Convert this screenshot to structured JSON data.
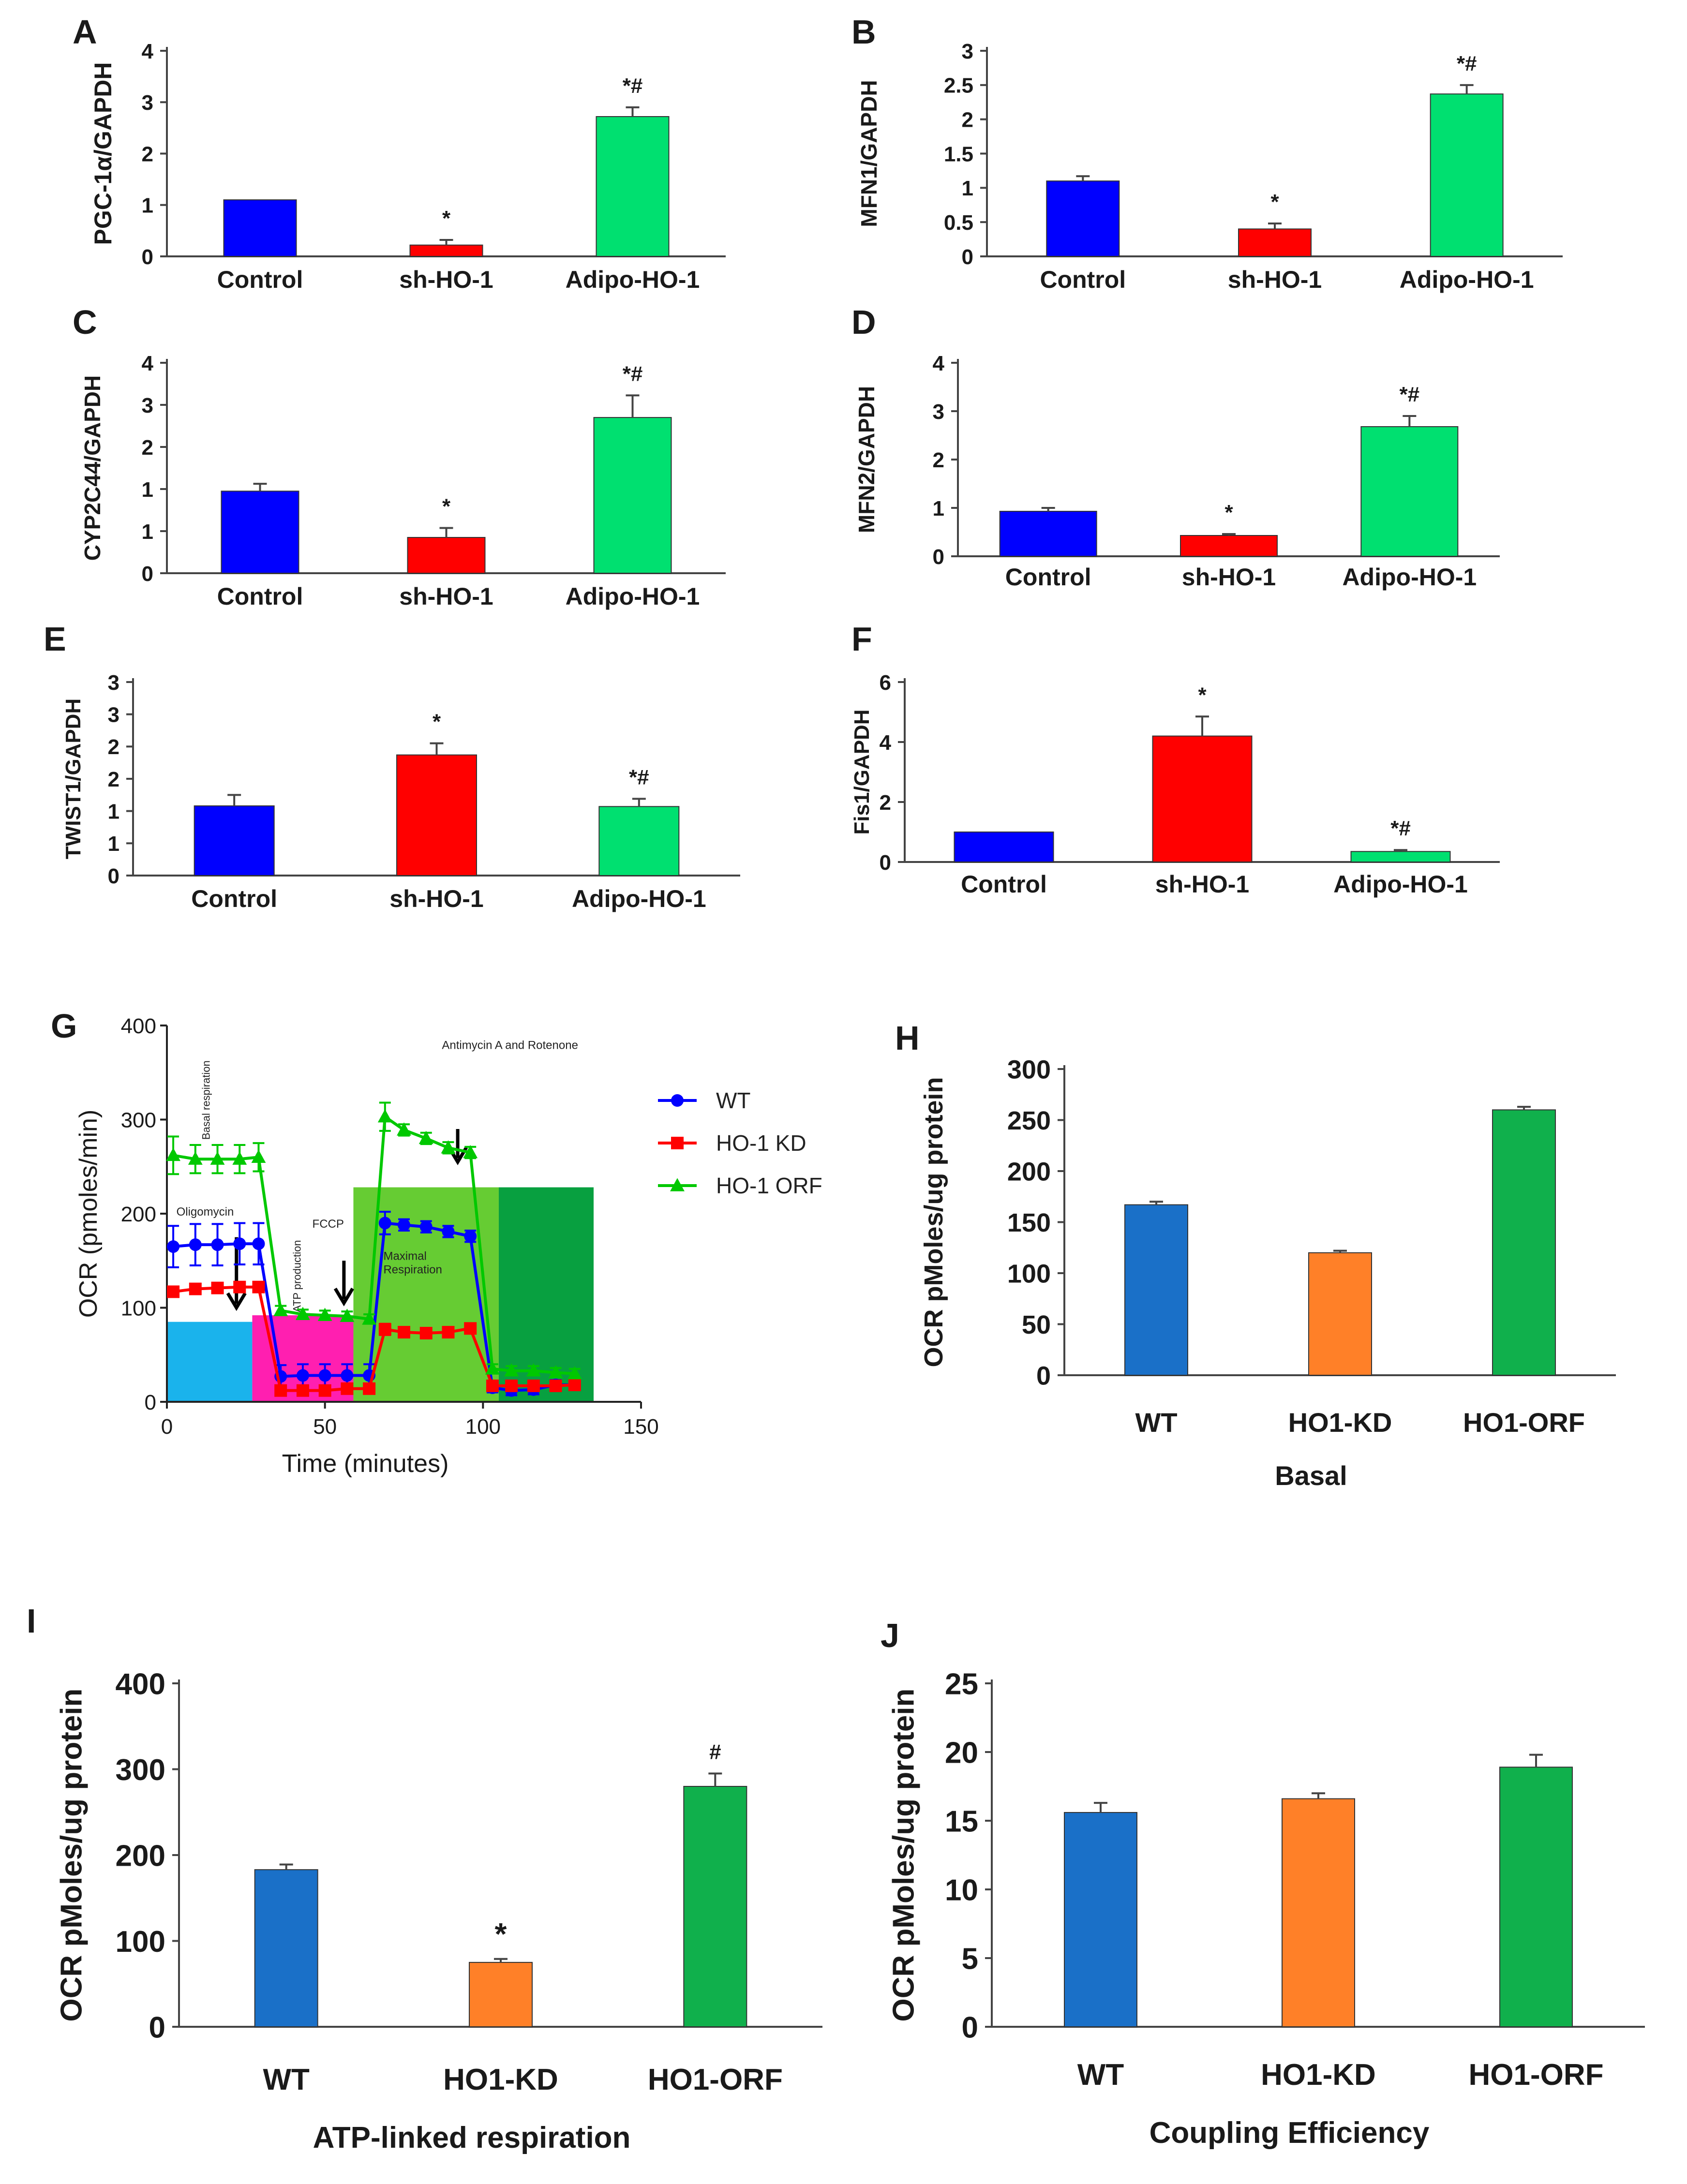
{
  "chart_data": [
    {
      "panel": "A",
      "type": "bar",
      "categories": [
        "Control",
        "sh-HO-1",
        "Adipo-HO-1"
      ],
      "values": [
        1.1,
        0.22,
        2.72
      ],
      "errors": [
        0,
        0.1,
        0.18
      ],
      "colors": [
        "#0000ff",
        "#ff0000",
        "#00e070"
      ],
      "annotations": [
        "",
        "*",
        "*#"
      ],
      "ylabel": "PGC-1α/GAPDH",
      "ylim": [
        0,
        4
      ],
      "yticks": [
        "0",
        "1",
        "2",
        "3",
        "4"
      ]
    },
    {
      "panel": "B",
      "type": "bar",
      "categories": [
        "Control",
        "sh-HO-1",
        "Adipo-HO-1"
      ],
      "values": [
        1.1,
        0.4,
        2.37
      ],
      "errors": [
        0.07,
        0.08,
        0.13
      ],
      "colors": [
        "#0000ff",
        "#ff0000",
        "#00e070"
      ],
      "annotations": [
        "",
        "*",
        "*#"
      ],
      "ylabel": "MFN1/GAPDH",
      "ylim": [
        0,
        3
      ],
      "yticks": [
        "0",
        "0.5",
        "1",
        "1.5",
        "2",
        "2.5",
        "3"
      ]
    },
    {
      "panel": "C",
      "type": "bar",
      "categories": [
        "Control",
        "sh-HO-1",
        "Adipo-HO-1"
      ],
      "values": [
        1.56,
        0.68,
        2.96
      ],
      "errors": [
        0.14,
        0.18,
        0.42
      ],
      "colors": [
        "#0000ff",
        "#ff0000",
        "#00e070"
      ],
      "annotations": [
        "",
        "*",
        "*#"
      ],
      "ylabel": "CYP2C44/GAPDH",
      "ylim": [
        0,
        4
      ],
      "yticks": [
        "0",
        "1",
        "1",
        "2",
        "3",
        "4"
      ]
    },
    {
      "panel": "D",
      "type": "bar",
      "categories": [
        "Control",
        "sh-HO-1",
        "Adipo-HO-1"
      ],
      "values": [
        0.93,
        0.43,
        2.68
      ],
      "errors": [
        0.07,
        0.03,
        0.22
      ],
      "colors": [
        "#0000ff",
        "#ff0000",
        "#00e070"
      ],
      "annotations": [
        "",
        "*",
        "*#"
      ],
      "ylabel": "MFN2/GAPDH",
      "ylim": [
        0,
        4
      ],
      "yticks": [
        "0",
        "1",
        "2",
        "3",
        "4"
      ]
    },
    {
      "panel": "E",
      "type": "bar",
      "categories": [
        "Control",
        "sh-HO-1",
        "Adipo-HO-1"
      ],
      "values": [
        1.08,
        1.87,
        1.07
      ],
      "errors": [
        0.17,
        0.18,
        0.12
      ],
      "colors": [
        "#0000ff",
        "#ff0000",
        "#00e070"
      ],
      "annotations": [
        "",
        "*",
        "*#"
      ],
      "ylabel": "TWIST1/GAPDH",
      "ylim": [
        0,
        3
      ],
      "yticks": [
        "0",
        "1",
        "1",
        "2",
        "2",
        "3",
        "3"
      ]
    },
    {
      "panel": "F",
      "type": "bar",
      "categories": [
        "Control",
        "sh-HO-1",
        "Adipo-HO-1"
      ],
      "values": [
        1.0,
        4.2,
        0.35
      ],
      "errors": [
        0,
        0.65,
        0.05
      ],
      "colors": [
        "#0000ff",
        "#ff0000",
        "#00e070"
      ],
      "annotations": [
        "",
        "*",
        "*#"
      ],
      "ylabel": "Fis1/GAPDH",
      "ylim": [
        0,
        6
      ],
      "yticks": [
        "0",
        "2",
        "4",
        "6"
      ]
    },
    {
      "panel": "G",
      "type": "line",
      "xlabel": "Time (minutes)",
      "ylabel": "OCR (pmoles/min)",
      "xlim": [
        0,
        150
      ],
      "ylim": [
        0,
        400
      ],
      "xticks": [
        "0",
        "50",
        "100",
        "150"
      ],
      "yticks": [
        "0",
        "100",
        "200",
        "300",
        "400"
      ],
      "legend_position": "right",
      "series": [
        {
          "name": "WT",
          "color": "#0000ff",
          "marker": "circle",
          "x": [
            2,
            9,
            16,
            23,
            29,
            36,
            43,
            50,
            57,
            64,
            69,
            75,
            82,
            89,
            96,
            103,
            109,
            116,
            123,
            129
          ],
          "y": [
            165,
            167,
            167,
            168,
            168,
            27,
            28,
            28,
            28,
            28,
            190,
            188,
            186,
            181,
            176,
            15,
            12,
            13,
            18,
            18
          ],
          "err": [
            22,
            22,
            22,
            22,
            22,
            12,
            12,
            12,
            12,
            12,
            12,
            6,
            6,
            6,
            6,
            5,
            5,
            5,
            5,
            5
          ]
        },
        {
          "name": "HO-1 KD",
          "color": "#ff0000",
          "marker": "square",
          "x": [
            2,
            9,
            16,
            23,
            29,
            36,
            43,
            50,
            57,
            64,
            69,
            75,
            82,
            89,
            96,
            103,
            109,
            116,
            123,
            129
          ],
          "y": [
            117,
            120,
            121,
            122,
            122,
            12,
            12,
            12,
            14,
            14,
            77,
            74,
            73,
            74,
            78,
            17,
            17,
            17,
            17,
            18
          ],
          "err": [
            5,
            5,
            5,
            5,
            5,
            3,
            3,
            3,
            3,
            3,
            6,
            4,
            4,
            4,
            4,
            3,
            3,
            3,
            3,
            3
          ]
        },
        {
          "name": "HO-1 ORF",
          "color": "#00c800",
          "marker": "triangle",
          "x": [
            2,
            9,
            16,
            23,
            29,
            36,
            43,
            50,
            57,
            64,
            69,
            75,
            82,
            89,
            96,
            103,
            109,
            116,
            123,
            129
          ],
          "y": [
            262,
            258,
            258,
            258,
            260,
            97,
            93,
            92,
            91,
            88,
            303,
            289,
            280,
            270,
            265,
            35,
            33,
            33,
            31,
            30
          ],
          "err": [
            20,
            15,
            15,
            15,
            15,
            5,
            5,
            5,
            5,
            5,
            15,
            6,
            6,
            6,
            6,
            5,
            5,
            5,
            5,
            5
          ]
        }
      ],
      "regions": [
        {
          "label": "",
          "x0": 0,
          "x1": 27,
          "top": 85,
          "color": "#1ab3ec"
        },
        {
          "label": "ATP production",
          "x0": 27,
          "x1": 59,
          "top": 92,
          "color": "#ff1fb0"
        },
        {
          "label": "Maximal Respiration",
          "x0": 59,
          "x1": 105,
          "top": 228,
          "color": "#66cc33"
        },
        {
          "label": "",
          "x0": 105,
          "x1": 135,
          "top": 228,
          "color": "#08a040"
        }
      ],
      "annotations": [
        {
          "text": "Basal respiration",
          "x": 12,
          "y": 330
        },
        {
          "text": "Oligomycin",
          "x": 3,
          "y": 198
        },
        {
          "text": "FCCP",
          "x": 46,
          "y": 185
        },
        {
          "text": "Antimycin A and Rotenone",
          "x": 87,
          "y": 375
        }
      ],
      "arrows": [
        {
          "x": 22,
          "y_from": 175,
          "y_to": 100
        },
        {
          "x": 56,
          "y_from": 150,
          "y_to": 105
        },
        {
          "x": 92,
          "y_from": 290,
          "y_to": 255
        }
      ]
    },
    {
      "panel": "H",
      "type": "bar",
      "categories": [
        "WT",
        "HO1-KD",
        "HO1-ORF"
      ],
      "values": [
        167,
        120,
        260
      ],
      "errors": [
        3,
        2,
        3
      ],
      "colors": [
        "#1a70c8",
        "#ff8028",
        "#10b04c"
      ],
      "annotations": [
        "",
        "",
        ""
      ],
      "ylabel": "OCR pMoles/ug protein",
      "xlabel": "Basal",
      "ylim": [
        0,
        300
      ],
      "yticks": [
        "0",
        "50",
        "100",
        "150",
        "200",
        "250",
        "300"
      ]
    },
    {
      "panel": "I",
      "type": "bar",
      "categories": [
        "WT",
        "HO1-KD",
        "HO1-ORF"
      ],
      "values": [
        183,
        75,
        280
      ],
      "errors": [
        6,
        4,
        15
      ],
      "colors": [
        "#1a70c8",
        "#ff8028",
        "#10b04c"
      ],
      "annotations": [
        "",
        "*",
        "#"
      ],
      "ylabel": "OCR pMoles/ug protein",
      "xlabel": "ATP-linked respiration",
      "ylim": [
        0,
        400
      ],
      "yticks": [
        "0",
        "100",
        "200",
        "300",
        "400"
      ]
    },
    {
      "panel": "J",
      "type": "bar",
      "categories": [
        "WT",
        "HO1-KD",
        "HO1-ORF"
      ],
      "values": [
        15.6,
        16.6,
        18.9
      ],
      "errors": [
        0.7,
        0.4,
        0.9
      ],
      "colors": [
        "#1a70c8",
        "#ff8028",
        "#10b04c"
      ],
      "annotations": [
        "",
        "",
        ""
      ],
      "ylabel": "OCR pMoles/ug protein",
      "xlabel": "Coupling Efficiency",
      "ylim": [
        0,
        25
      ],
      "yticks": [
        "0",
        "5",
        "10",
        "15",
        "20",
        "25"
      ]
    }
  ]
}
